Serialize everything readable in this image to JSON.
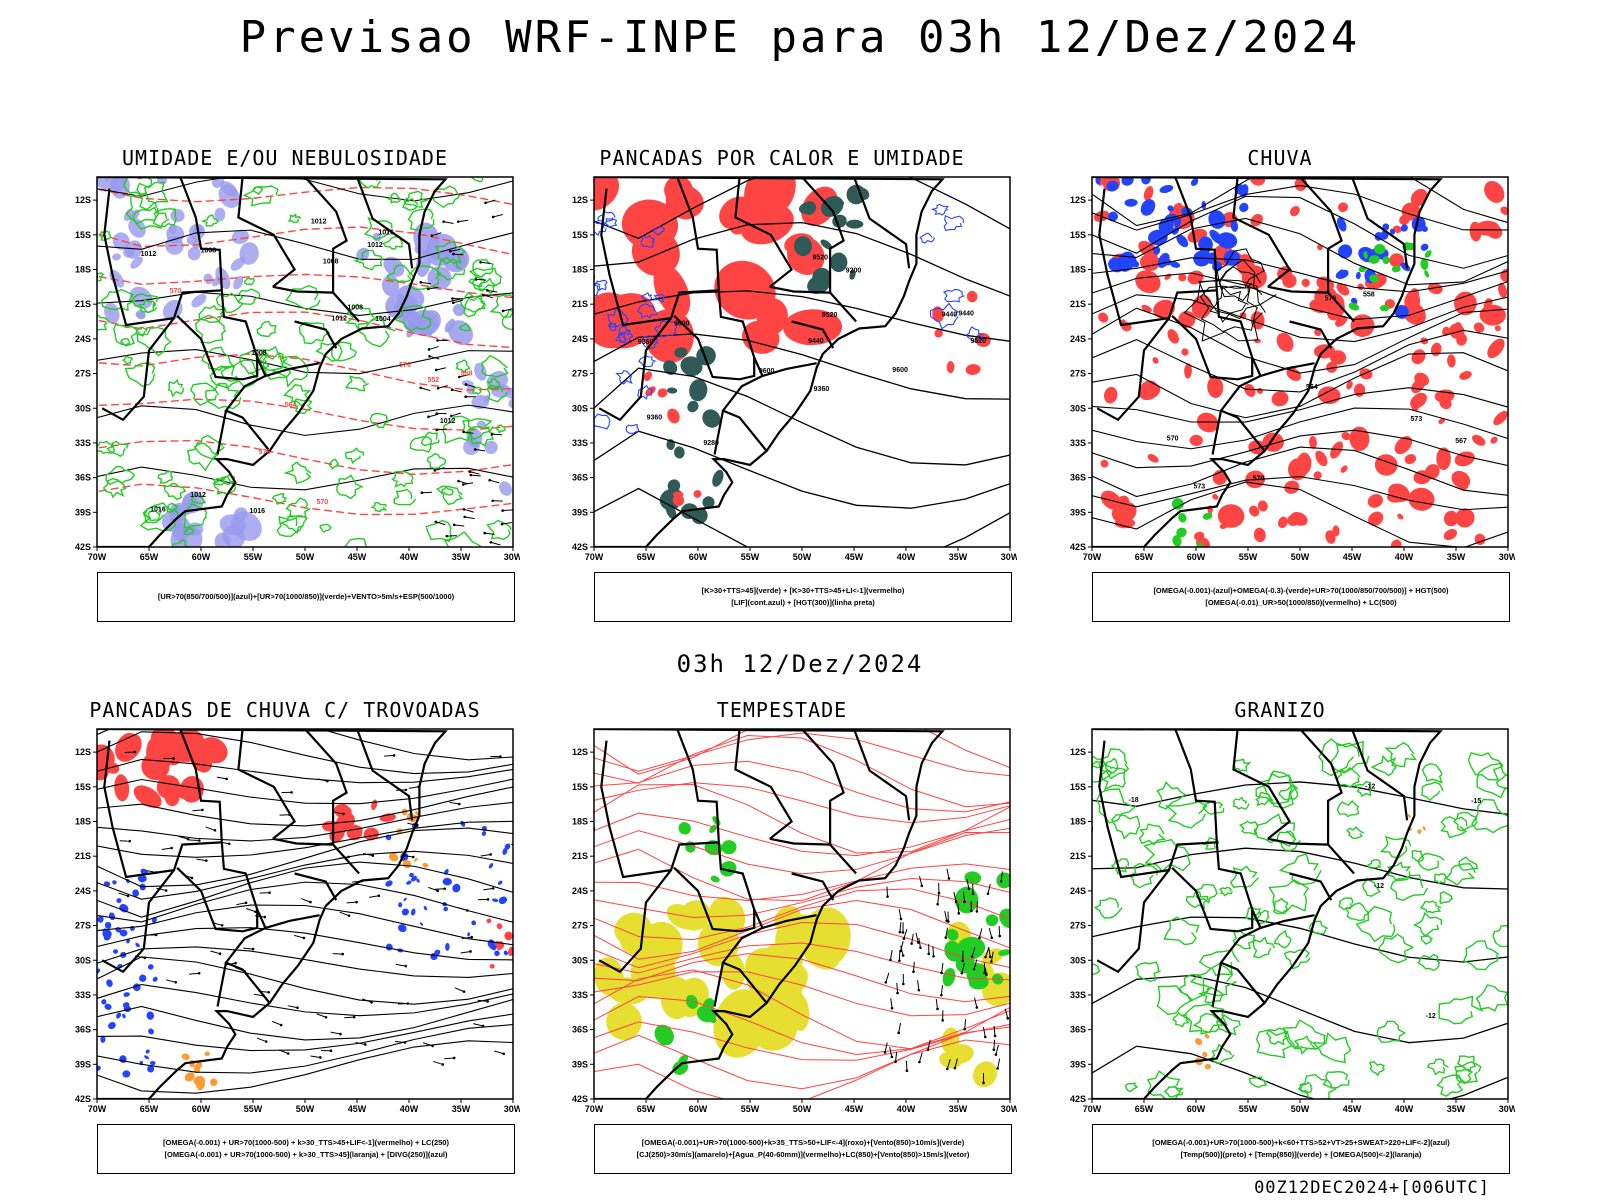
{
  "header": {
    "title": "Previsao WRF-INPE  para 03h 12/Dez/2024",
    "subtitle": "03h 12/Dez/2024",
    "footer": "00Z12DEC2024+[006UTC]"
  },
  "axes": {
    "lat_labels": [
      "12S",
      "15S",
      "18S",
      "21S",
      "24S",
      "27S",
      "30S",
      "33S",
      "36S",
      "39S",
      "42S"
    ],
    "lon_labels": [
      "70W",
      "65W",
      "60W",
      "55W",
      "50W",
      "45W",
      "40W",
      "35W",
      "30W"
    ]
  },
  "colors": {
    "humidity_blue": "#9999ee",
    "green": "#22cc22",
    "red": "#ff4444",
    "dark_teal": "#2f5a58",
    "blue_dots": "#2244ff",
    "orange": "#ff9933",
    "yellow": "#e6de30"
  },
  "panels": [
    {
      "title": "UMIDADE E/OU NEBULOSIDADE",
      "legend": [
        "[UR>70(850/700/500)](azul)+[UR>70(1000/850)](verde)+VENTO>5m/s+ESP(500/1000)"
      ],
      "contour_labels": [
        "1008",
        "1012",
        "1012",
        "1012",
        "1008",
        "1016",
        "1012",
        "1008",
        "1012",
        "1016",
        "1004",
        "1008",
        "1012",
        "1016",
        "576",
        "570",
        "564",
        "558",
        "552",
        "570",
        "576"
      ]
    },
    {
      "title": "PANCADAS POR CALOR E UMIDADE",
      "legend": [
        "[K>30+TTS>45](verde) + [K>30+TTS>45+LI<-1](vermelho)",
        "[LIF](cont.azul) + [HGT(300)](linha preta)"
      ],
      "contour_labels": [
        "9600",
        "9600",
        "9600",
        "9520",
        "9440",
        "9360",
        "9280",
        "9200",
        "9520",
        "9440",
        "9360",
        "9360",
        "9440",
        "9520"
      ]
    },
    {
      "title": "CHUVA",
      "legend": [
        "[OMEGA(-0.001)-(azul)+OMEGA(-0.3)-(verde)+UR>70(1000/850/700/500)] + HGT(500)",
        "[OMEGA(-0.01)_UR>50(1000/850)(vermelho) + LC(500)"
      ],
      "contour_labels": [
        "576",
        "573",
        "570",
        "567",
        "564",
        "558",
        "570",
        "573"
      ]
    },
    {
      "title": "PANCADAS DE CHUVA C/ TROVOADAS",
      "legend": [
        "[OMEGA(-0.001) + UR>70(1000-500) + k>30_TTS>45+LIF<-1](vermelho) + LC(250)",
        "[OMEGA(-0.001) + UR>70(1000-500) + k>30_TTS>45](laranja) + [DIVG(250)](azul)"
      ],
      "contour_labels": []
    },
    {
      "title": "TEMPESTADE",
      "legend": [
        "[OMEGA(-0.001)+UR>70(1000-500)+k>35_TTS>50+LIF<-4](roxo)+[Vento(850)>10m/s](verde)",
        "[CJ(250)>30m/s](amarelo)+[Agua_P(40-60mm)](vermelho)+LC(850)+[Vento(850)>15m/s](vetor)"
      ],
      "contour_labels": []
    },
    {
      "title": "GRANIZO",
      "legend": [
        "[OMEGA(-0.001)+UR>70(1000-500)+k<60+TTS>52+VT>25+SWEAT>220+LIF<-2](azul)",
        "[Temp(500)](preto) + [Temp(850)](verde) + [OMEGA(500)<-2](laranja)"
      ],
      "contour_labels": [
        "-12",
        "-15",
        "-18",
        "-12",
        "-12"
      ]
    }
  ]
}
